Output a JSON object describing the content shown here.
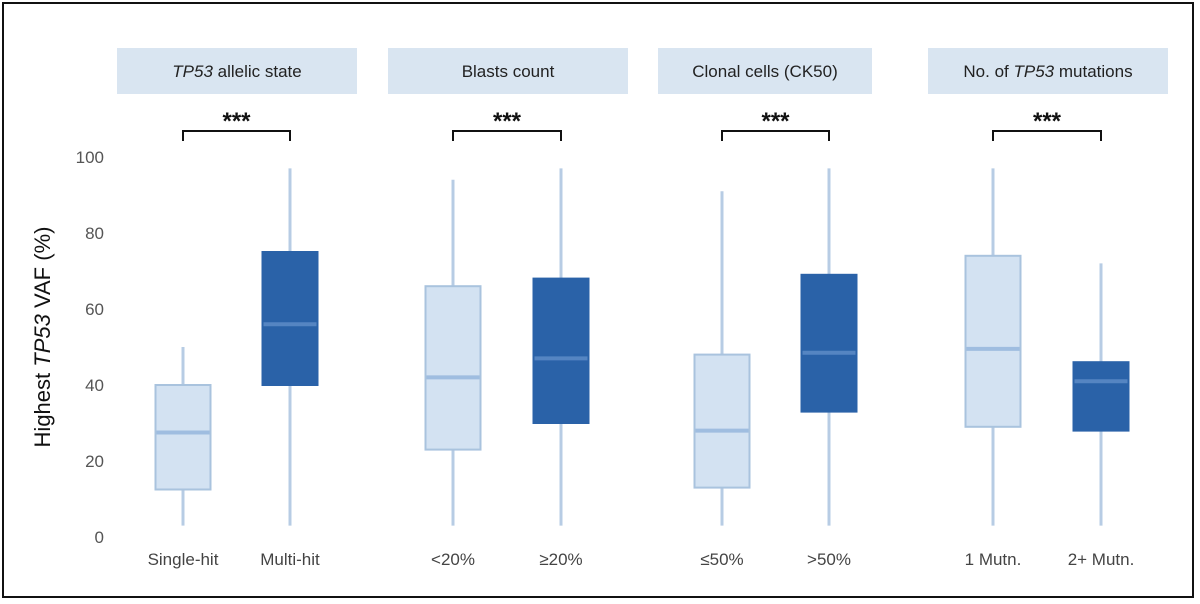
{
  "chart_data": {
    "type": "box",
    "ylabel": {
      "prefix": "Highest ",
      "italic": "TP53",
      "suffix": " VAF (%)"
    },
    "ylim": [
      0,
      100
    ],
    "yticks": [
      "0",
      "20",
      "40",
      "60",
      "80",
      "100"
    ],
    "colors": {
      "light_fill": "#d3e2f2",
      "light_stroke": "#a9c3de",
      "light_median": "#9fbde0",
      "dark_fill": "#2a62a8",
      "dark_median": "#5585c2",
      "whisker": "#b7cce4",
      "panel_bg": "#d9e5f1"
    },
    "panels": [
      {
        "title_parts": [
          {
            "text": "TP53",
            "italic": true
          },
          {
            "text": " allelic state",
            "italic": false
          }
        ],
        "significance": "***",
        "groups": [
          {
            "label": "Single-hit",
            "style": "light",
            "min": 3,
            "q1": 12.5,
            "median": 27.5,
            "q3": 40,
            "max": 50
          },
          {
            "label": "Multi-hit",
            "style": "dark",
            "min": 3,
            "q1": 40,
            "median": 56,
            "q3": 75,
            "max": 97
          }
        ]
      },
      {
        "title_parts": [
          {
            "text": "Blasts count",
            "italic": false
          }
        ],
        "significance": "***",
        "groups": [
          {
            "label": "<20%",
            "style": "light",
            "min": 3,
            "q1": 23,
            "median": 42,
            "q3": 66,
            "max": 94
          },
          {
            "label": "≥20%",
            "style": "dark",
            "min": 3,
            "q1": 30,
            "median": 47,
            "q3": 68,
            "max": 97
          }
        ]
      },
      {
        "title_parts": [
          {
            "text": "Clonal cells (CK50)",
            "italic": false
          }
        ],
        "significance": "***",
        "groups": [
          {
            "label": "≤50%",
            "style": "light",
            "min": 3,
            "q1": 13,
            "median": 28,
            "q3": 48,
            "max": 91
          },
          {
            "label": ">50%",
            "style": "dark",
            "min": 3,
            "q1": 33,
            "median": 48.5,
            "q3": 69,
            "max": 97
          }
        ]
      },
      {
        "title_parts": [
          {
            "text": "No. of ",
            "italic": false
          },
          {
            "text": "TP53",
            "italic": true
          },
          {
            "text": " mutations",
            "italic": false
          }
        ],
        "significance": "***",
        "groups": [
          {
            "label": "1 Mutn.",
            "style": "light",
            "min": 3,
            "q1": 29,
            "median": 49.5,
            "q3": 74,
            "max": 97
          },
          {
            "label": "2+ Mutn.",
            "style": "dark",
            "min": 3,
            "q1": 28,
            "median": 41,
            "q3": 46,
            "max": 72
          }
        ]
      }
    ]
  }
}
